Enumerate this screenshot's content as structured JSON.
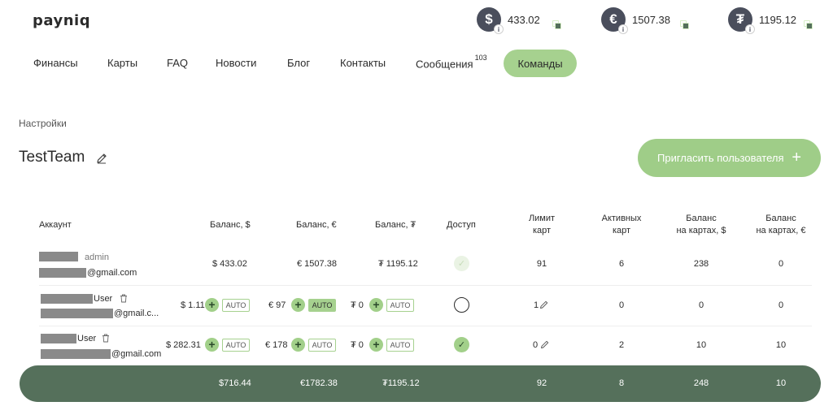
{
  "logo": "payniq",
  "balances": [
    {
      "symbol": "$",
      "amount": "433.02",
      "info": "i"
    },
    {
      "symbol": "€",
      "amount": "1507.38",
      "info": "i"
    },
    {
      "symbol": "₮",
      "amount": "1195.12",
      "info": "i"
    }
  ],
  "nav": {
    "items": [
      "Финансы",
      "Карты",
      "FAQ",
      "Новости",
      "Блог",
      "Контакты",
      "Сообщения"
    ],
    "messages_badge": "103",
    "active": "Команды"
  },
  "breadcrumb": "Настройки",
  "team_name": "TestTeam",
  "invite_button": "Пригласить пользователя",
  "invite_plus": "+",
  "table": {
    "headers": {
      "account": "Аккаунт",
      "bal_usd": "Баланс, $",
      "bal_eur": "Баланс, €",
      "bal_usdt": "Баланс, ₮",
      "access": "Доступ",
      "limit_1": "Лимит",
      "limit_2": "карт",
      "active_1": "Активных",
      "active_2": "карт",
      "cards_usd_1": "Баланс",
      "cards_usd_2": "на картах, $",
      "cards_eur_1": "Баланс",
      "cards_eur_2": "на картах, €"
    },
    "rows": [
      {
        "role": "admin",
        "email_suffix": "@gmail.com",
        "usd": "$ 433.02",
        "eur": "€ 1507.38",
        "usdt": "₮ 1195.12",
        "access": "light",
        "limit": "91",
        "active": "6",
        "cards_usd": "238",
        "cards_eur": "0"
      },
      {
        "role": "User",
        "email_suffix": "@gmail.c...",
        "usd": "$ 1.11",
        "eur": "€ 97",
        "usdt": "₮ 0",
        "auto": "AUTO",
        "eur_auto_on": true,
        "access": "empty",
        "limit": "1",
        "active": "0",
        "cards_usd": "0",
        "cards_eur": "0"
      },
      {
        "role": "User",
        "email_suffix": "@gmail.com",
        "usd": "$ 282.31",
        "eur": "€ 178",
        "usdt": "₮ 0",
        "auto": "AUTO",
        "eur_auto_on": false,
        "access": "on",
        "limit": "0",
        "active": "2",
        "cards_usd": "10",
        "cards_eur": "10"
      }
    ],
    "plus": "+",
    "check": "✓",
    "totals": {
      "usd": "$716.44",
      "eur": "€1782.38",
      "usdt": "₮1195.12",
      "limit": "92",
      "active": "8",
      "cards_usd": "248",
      "cards_eur": "10"
    }
  },
  "colors": {
    "accent": "#a6d18f",
    "dark_green": "#55705b",
    "coin": "#4a4e5c"
  }
}
